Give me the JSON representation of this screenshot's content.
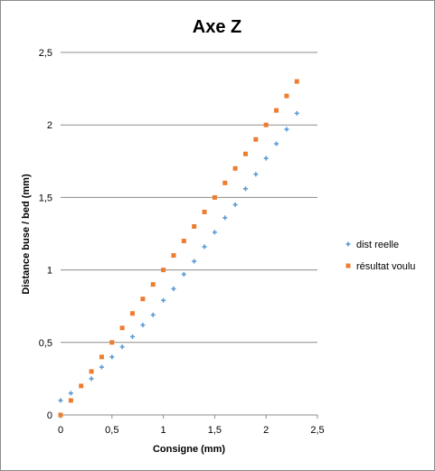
{
  "chart_data": {
    "type": "scatter",
    "title": "Axe Z",
    "xlabel": "Consigne (mm)",
    "ylabel": "Distance buse / bed  (mm)",
    "xlim": [
      0,
      2.5
    ],
    "ylim": [
      0,
      2.5
    ],
    "x_ticks": [
      "0",
      "0,5",
      "1",
      "1,5",
      "2",
      "2,5"
    ],
    "y_ticks": [
      "0",
      "0,5",
      "1",
      "1,5",
      "2",
      "2,5"
    ],
    "grid": "horizontal",
    "legend_position": "right",
    "series": [
      {
        "name": "dist reelle",
        "color": "#5b9bd5",
        "marker": "cross",
        "x": [
          0,
          0.1,
          0.3,
          0.4,
          0.5,
          0.6,
          0.7,
          0.8,
          0.9,
          1.0,
          1.1,
          1.2,
          1.3,
          1.4,
          1.5,
          1.6,
          1.7,
          1.8,
          1.9,
          2.0,
          2.1,
          2.2,
          2.3
        ],
        "y": [
          0.1,
          0.15,
          0.25,
          0.33,
          0.4,
          0.47,
          0.54,
          0.62,
          0.69,
          0.79,
          0.87,
          0.97,
          1.06,
          1.16,
          1.26,
          1.36,
          1.45,
          1.56,
          1.66,
          1.77,
          1.87,
          1.97,
          2.08
        ]
      },
      {
        "name": "résultat voulu",
        "color": "#ed7d31",
        "marker": "square",
        "x": [
          0,
          0.1,
          0.2,
          0.3,
          0.4,
          0.5,
          0.6,
          0.7,
          0.8,
          0.9,
          1.0,
          1.1,
          1.2,
          1.3,
          1.4,
          1.5,
          1.6,
          1.7,
          1.8,
          1.9,
          2.0,
          2.1,
          2.2,
          2.3
        ],
        "y": [
          0,
          0.1,
          0.2,
          0.3,
          0.4,
          0.5,
          0.6,
          0.7,
          0.8,
          0.9,
          1.0,
          1.1,
          1.2,
          1.3,
          1.4,
          1.5,
          1.6,
          1.7,
          1.8,
          1.9,
          2.0,
          2.1,
          2.2,
          2.3
        ]
      }
    ]
  }
}
